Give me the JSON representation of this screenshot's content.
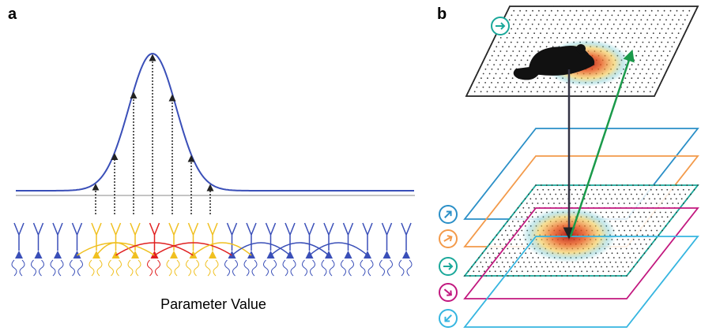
{
  "panels": [
    {
      "label": "a",
      "axis_label": "Parameter Value"
    },
    {
      "label": "b"
    }
  ]
}
